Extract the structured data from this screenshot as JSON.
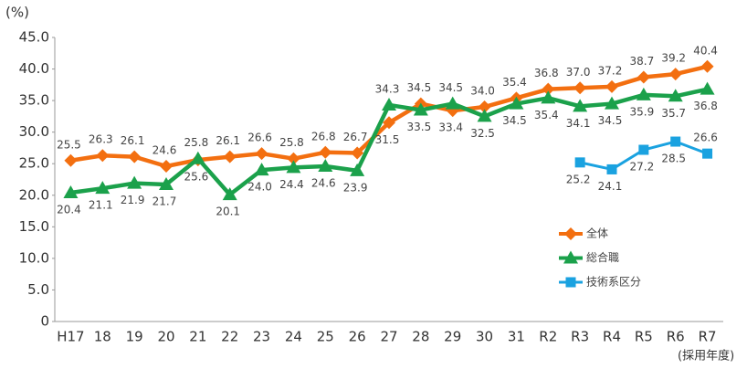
{
  "chart_data": {
    "type": "line",
    "y_label": "(%)",
    "x_label": "(採用年度)",
    "categories": [
      "H17",
      "18",
      "19",
      "20",
      "21",
      "22",
      "23",
      "24",
      "25",
      "26",
      "27",
      "28",
      "29",
      "30",
      "31",
      "R2",
      "R3",
      "R4",
      "R5",
      "R6",
      "R7"
    ],
    "series": [
      {
        "name": "全体",
        "color": "#f36f10",
        "marker": "diamond",
        "values": [
          25.5,
          26.3,
          26.1,
          24.6,
          25.6,
          26.1,
          26.6,
          25.8,
          26.8,
          26.7,
          31.5,
          34.5,
          33.4,
          34.0,
          35.4,
          36.8,
          37.0,
          37.2,
          38.7,
          39.2,
          40.4
        ],
        "value_labels": [
          "25.5",
          "26.3",
          "26.1",
          "24.6",
          "25.6",
          "26.1",
          "26.6",
          "25.8",
          "26.8",
          "26.7",
          "31.5",
          "34.5",
          "33.4",
          "34.0",
          "35.4",
          "36.8",
          "37.0",
          "37.2",
          "38.7",
          "39.2",
          "40.4"
        ]
      },
      {
        "name": "総合職",
        "color": "#1ba14b",
        "marker": "triangle",
        "values": [
          20.4,
          21.1,
          21.9,
          21.7,
          25.8,
          20.1,
          24.0,
          24.4,
          24.6,
          23.9,
          34.3,
          33.5,
          34.5,
          32.5,
          34.5,
          35.4,
          34.1,
          34.5,
          35.9,
          35.7,
          36.8
        ],
        "value_labels": [
          "20.4",
          "21.1",
          "21.9",
          "21.7",
          "25.8",
          "20.1",
          "24.0",
          "24.4",
          "24.6",
          "23.9",
          "34.3",
          "33.5",
          "34.5",
          "32.5",
          "34.5",
          "35.4",
          "34.1",
          "34.5",
          "35.9",
          "35.7",
          "36.8"
        ]
      },
      {
        "name": "技術系区分",
        "color": "#1aa2e0",
        "marker": "square",
        "values": [
          null,
          null,
          null,
          null,
          null,
          null,
          null,
          null,
          null,
          null,
          null,
          null,
          null,
          null,
          null,
          null,
          25.2,
          24.1,
          27.2,
          28.5,
          26.6
        ],
        "value_labels": [
          null,
          null,
          null,
          null,
          null,
          null,
          null,
          null,
          null,
          null,
          null,
          null,
          null,
          null,
          null,
          null,
          "25.2",
          "24.1",
          "27.2",
          "28.5",
          "26.6"
        ]
      }
    ],
    "ylim": [
      0,
      45
    ],
    "yticks": [
      0,
      {
        "value": 5,
        "label": "5.0"
      },
      {
        "value": 10,
        "label": "10.0"
      },
      {
        "value": 15,
        "label": "15.0"
      },
      {
        "value": 20,
        "label": "20.0"
      },
      {
        "value": 25,
        "label": "25.0"
      },
      {
        "value": 30,
        "label": "30.0"
      },
      {
        "value": 35,
        "label": "35.0"
      },
      {
        "value": 40,
        "label": "40.0"
      },
      {
        "value": 45,
        "label": "45.0"
      }
    ],
    "grid": false
  }
}
